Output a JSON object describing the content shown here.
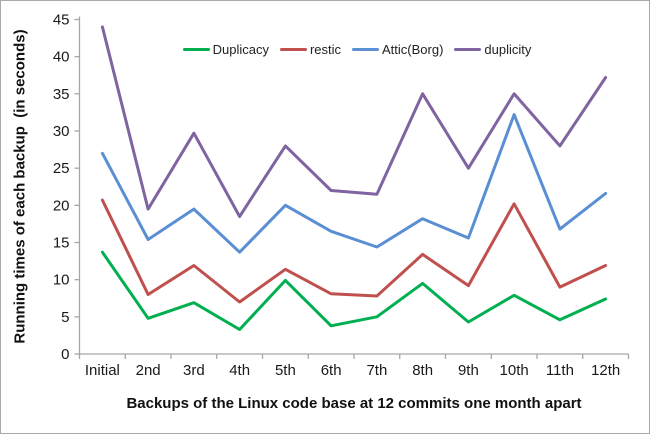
{
  "frame": {
    "background": "#ffffff",
    "border_color": "#a9a9a9"
  },
  "chart_data": {
    "type": "line",
    "title": "",
    "xlabel": "Backups of the Linux code base at 12 commits one month apart",
    "ylabel": "Running times of each backup  (in seconds)",
    "categories": [
      "Initial",
      "2nd",
      "3rd",
      "4th",
      "5th",
      "6th",
      "7th",
      "8th",
      "9th",
      "10th",
      "11th",
      "12th"
    ],
    "y_ticks": [
      0,
      5,
      10,
      15,
      20,
      25,
      30,
      35,
      40,
      45
    ],
    "ylim": [
      0,
      45
    ],
    "grid": false,
    "legend_position": "top-center",
    "axis_color": "#a6a6a6",
    "text_color": "#1a1a1a",
    "tick_font_size": 15,
    "series": [
      {
        "name": "Duplicacy",
        "color": "#00B050",
        "values": [
          13.7,
          4.8,
          6.9,
          3.3,
          9.9,
          3.8,
          5.0,
          9.5,
          4.3,
          7.9,
          4.6,
          7.4
        ]
      },
      {
        "name": "restic",
        "color": "#C0504D",
        "values": [
          20.7,
          8.0,
          11.9,
          7.0,
          11.4,
          8.1,
          7.8,
          13.4,
          9.2,
          20.2,
          9.0,
          11.9
        ]
      },
      {
        "name": "Attic(Borg)",
        "color": "#5B8FD4",
        "values": [
          27.0,
          15.4,
          19.5,
          13.7,
          20.0,
          16.5,
          14.4,
          18.2,
          15.6,
          32.2,
          16.8,
          21.6
        ]
      },
      {
        "name": "duplicity",
        "color": "#8064A2",
        "values": [
          44.0,
          19.5,
          29.7,
          18.5,
          28.0,
          22.0,
          21.5,
          35.0,
          25.0,
          35.0,
          28.0,
          37.2
        ]
      }
    ]
  }
}
